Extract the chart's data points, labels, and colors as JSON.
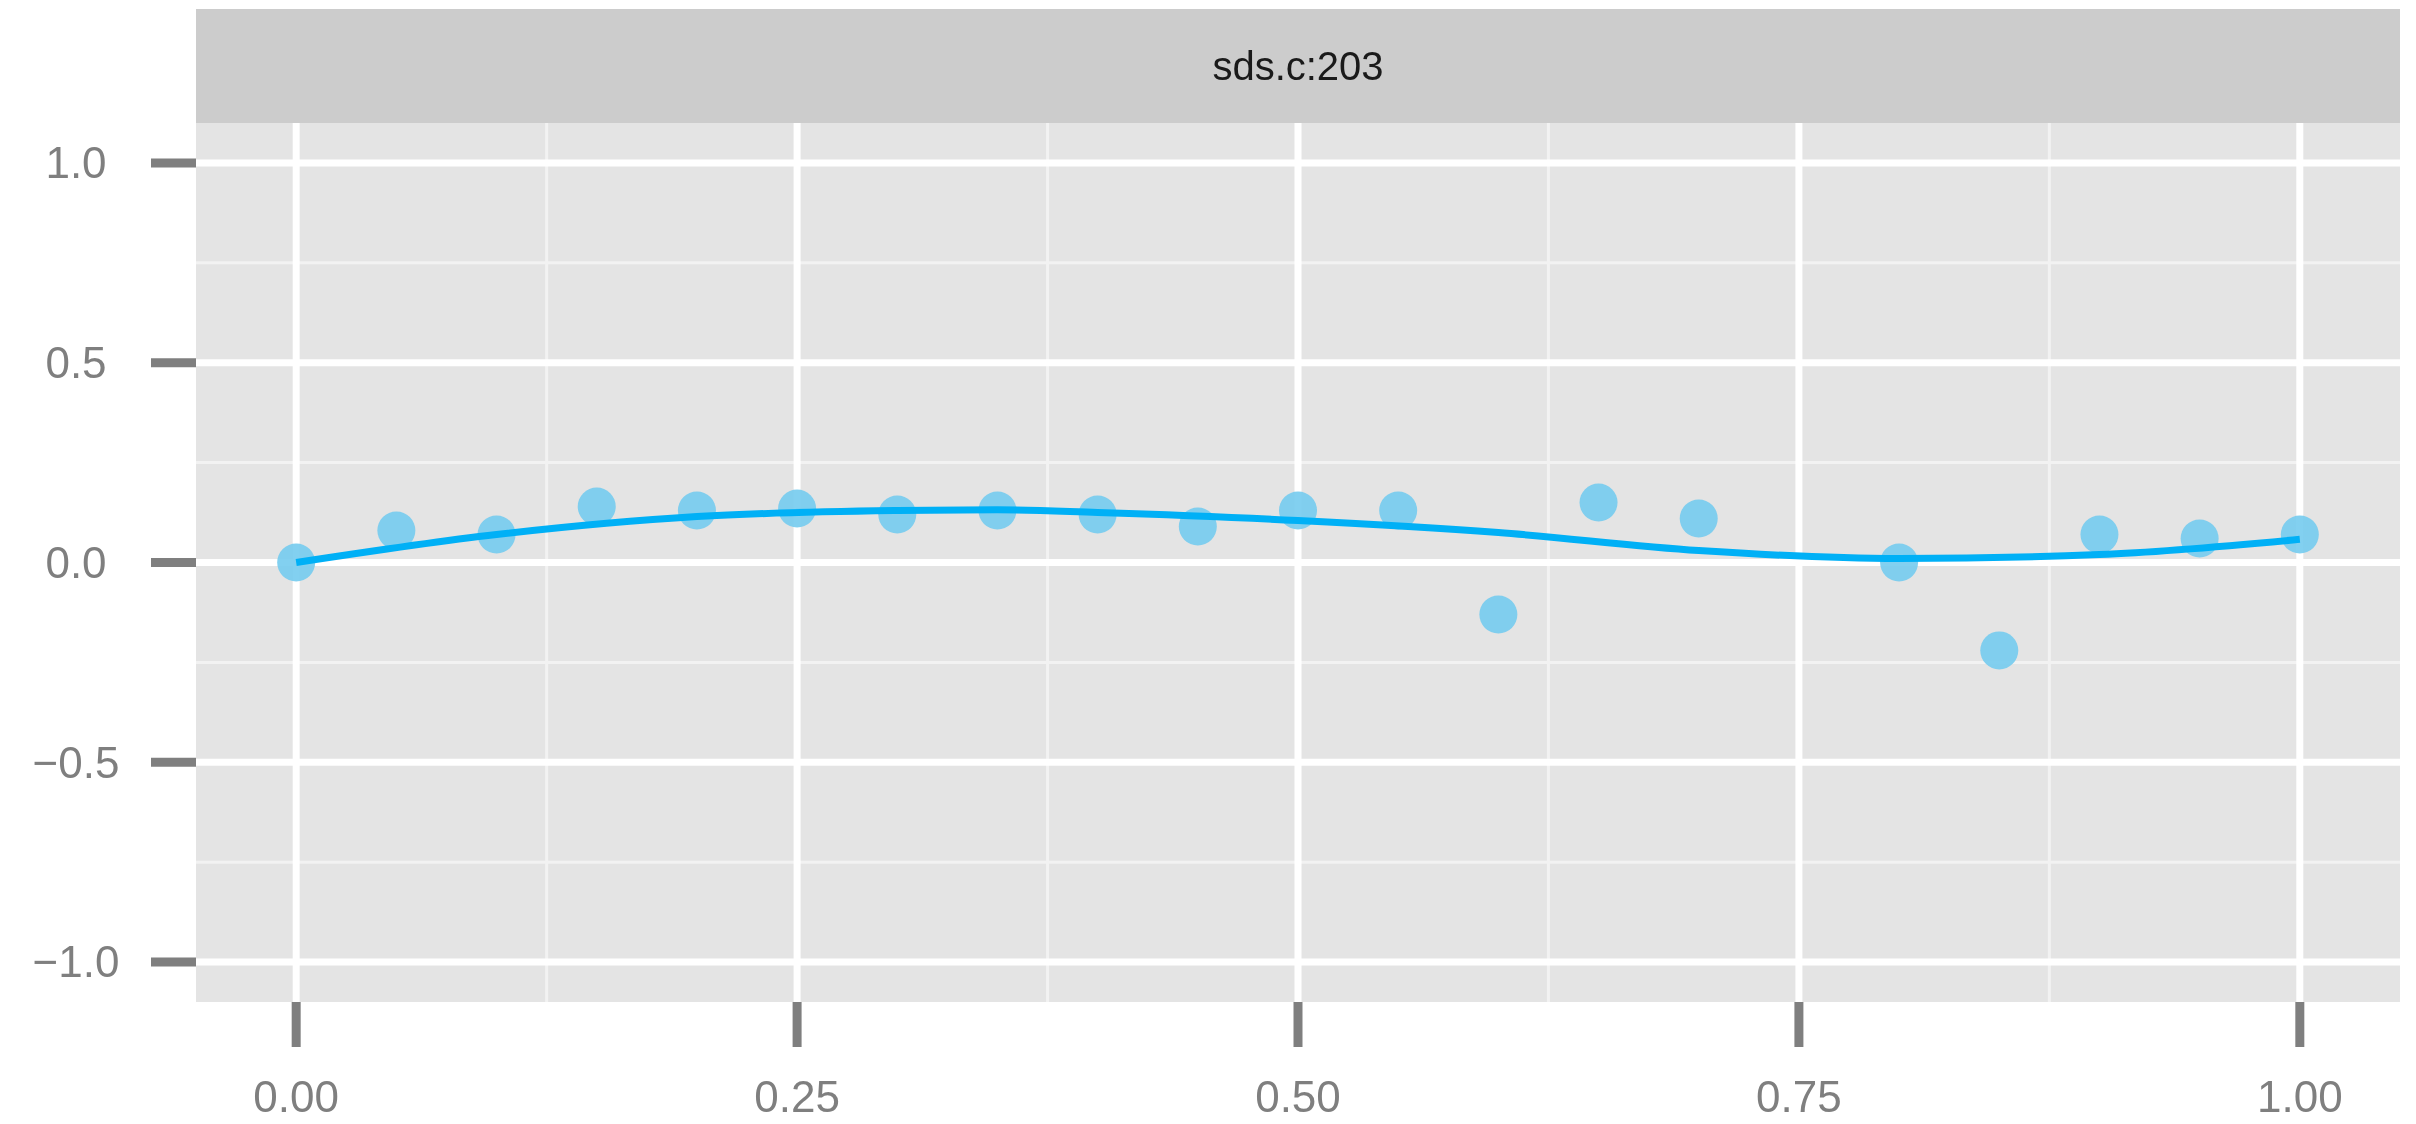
{
  "chart_data": {
    "type": "scatter",
    "title": "sds.c:203",
    "xlim": [
      -0.05,
      1.05
    ],
    "ylim": [
      -1.1,
      1.1
    ],
    "xticks": [
      {
        "value": 0,
        "label": "0.00"
      },
      {
        "value": 0.25,
        "label": "0.25"
      },
      {
        "value": 0.5,
        "label": "0.50"
      },
      {
        "value": 0.75,
        "label": "0.75"
      },
      {
        "value": 1,
        "label": "1.00"
      }
    ],
    "yticks": [
      {
        "value": -1,
        "label": "−1.0"
      },
      {
        "value": -0.5,
        "label": "−0.5"
      },
      {
        "value": 0,
        "label": "0.0"
      },
      {
        "value": 0.5,
        "label": "0.5"
      },
      {
        "value": 1,
        "label": "1.0"
      }
    ],
    "grid": true,
    "series": [
      {
        "color": "#74cbee",
        "marker": "circle",
        "x": [
          0,
          0.05,
          0.1,
          0.15,
          0.2,
          0.25,
          0.3,
          0.35,
          0.4,
          0.45,
          0.5,
          0.55,
          0.6,
          0.65,
          0.7,
          0.8,
          0.85,
          0.9,
          0.95,
          1.0
        ],
        "values": [
          0.0,
          0.08,
          0.07,
          0.14,
          0.13,
          0.135,
          0.12,
          0.13,
          0.12,
          0.09,
          0.13,
          0.13,
          -0.13,
          0.15,
          0.11,
          0.0,
          -0.22,
          0.07,
          0.06,
          0.07
        ]
      },
      {
        "type": "line",
        "color": "#00b0f6",
        "line_style": "solid",
        "marker": "none",
        "x": [
          0,
          0.1,
          0.2,
          0.3,
          0.35,
          0.4,
          0.5,
          0.6,
          0.7,
          0.8,
          0.9,
          1.0
        ],
        "values": [
          0.0,
          0.07,
          0.115,
          0.13,
          0.132,
          0.125,
          0.105,
          0.075,
          0.03,
          0.01,
          0.02,
          0.058
        ]
      }
    ]
  }
}
